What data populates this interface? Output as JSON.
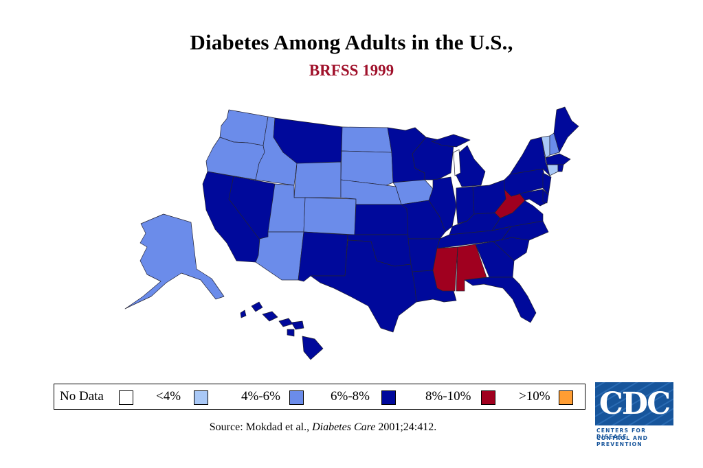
{
  "title": "Diabetes Among Adults in the U.S.,",
  "subtitle": "BRFSS 1999",
  "colors": {
    "title": "#000000",
    "subtitle": "#a0112b",
    "no_data": "#ffffff",
    "lt4": "#a9c8f6",
    "4to6": "#6b8cea",
    "6to8": "#00099b",
    "8to10": "#a0001f",
    "gt10": "#ff9d33",
    "border": "#222233",
    "cdc_blue": "#17559b"
  },
  "legend": [
    {
      "label": "No Data",
      "color_key": "no_data"
    },
    {
      "label": "<4%",
      "color_key": "lt4"
    },
    {
      "label": "4%-6%",
      "color_key": "4to6"
    },
    {
      "label": "6%-8%",
      "color_key": "6to8"
    },
    {
      "label": "8%-10%",
      "color_key": "8to10"
    },
    {
      "label": ">10%",
      "color_key": "gt10"
    }
  ],
  "source": {
    "prefix": "Source: Mokdad et al., ",
    "journal": "Diabetes Care",
    "suffix": " 2001;24:412."
  },
  "logo": {
    "text": "CDC",
    "line1": "CENTERS FOR DISEASE",
    "line2": "CONTROL AND PREVENTION"
  },
  "states": {
    "WA": "4to6",
    "OR": "4to6",
    "ID": "4to6",
    "UT": "4to6",
    "AZ": "4to6",
    "WY": "4to6",
    "CO": "4to6",
    "ND": "4to6",
    "SD": "4to6",
    "NE": "4to6",
    "IA": "4to6",
    "AK": "4to6",
    "VT": "lt4",
    "NH": "4to6",
    "CT": "lt4",
    "CA": "6to8",
    "NV": "6to8",
    "MT": "6to8",
    "NM": "6to8",
    "TX": "6to8",
    "OK": "6to8",
    "KS": "6to8",
    "MN": "6to8",
    "MO": "6to8",
    "AR": "6to8",
    "LA": "6to8",
    "WI": "6to8",
    "IL": "6to8",
    "MI": "6to8",
    "IN": "6to8",
    "OH": "6to8",
    "KY": "6to8",
    "TN": "6to8",
    "GA": "6to8",
    "FL": "6to8",
    "SC": "6to8",
    "NC": "6to8",
    "VA": "6to8",
    "PA": "6to8",
    "NY": "6to8",
    "ME": "6to8",
    "MA": "6to8",
    "NJ": "6to8",
    "DE": "6to8",
    "MD": "6to8",
    "RI": "6to8",
    "HI": "6to8",
    "MS": "8to10",
    "AL": "8to10",
    "WV": "8to10"
  }
}
